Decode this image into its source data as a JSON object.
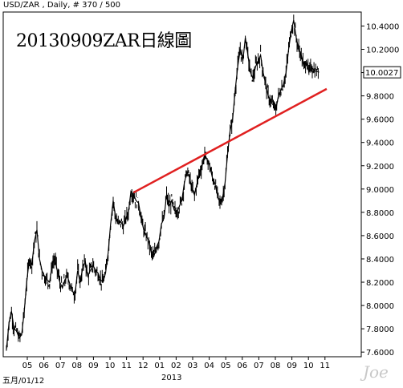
{
  "header": {
    "symbol_info": "USD/ZAR , Daily, # 370 / 500"
  },
  "title": "20130909ZAR日線圖",
  "watermark": "Joe",
  "bottom_labels": {
    "start_date": "五月/01/12",
    "year": "2013"
  },
  "chart_data": {
    "type": "line",
    "style": "candlestick-like daily price bars",
    "title": "20130909ZAR日線圖",
    "instrument": "USD/ZAR",
    "x_tick_labels": [
      "05",
      "06",
      "07",
      "08",
      "09",
      "10",
      "11",
      "12",
      "01",
      "02",
      "03",
      "04",
      "05",
      "06",
      "07",
      "08",
      "09",
      "10",
      "11"
    ],
    "y_ticks": [
      7.6,
      7.8,
      8.0,
      8.2,
      8.4,
      8.6,
      8.8,
      9.0,
      9.2,
      9.4,
      9.6,
      9.8,
      10.0,
      10.2,
      10.4
    ],
    "y_tick_labels": [
      "7.6000",
      "7.8000",
      "8.0000",
      "8.2000",
      "8.4000",
      "8.6000",
      "8.8000",
      "9.0000",
      "9.2000",
      "9.4000",
      "9.6000",
      "9.8000",
      "10.0000",
      "10.2000",
      "10.4000"
    ],
    "ylim": [
      7.56,
      10.52
    ],
    "current_price_label": "10.0027",
    "current_price": 10.0027,
    "series": [
      {
        "x": [
          0,
          3,
          6,
          9,
          12,
          15,
          18,
          21,
          24,
          27,
          30,
          33,
          36,
          39,
          42,
          45,
          48,
          51,
          54,
          57,
          60,
          63,
          66,
          69,
          72,
          75,
          78,
          81,
          84,
          87,
          90,
          93,
          96,
          99,
          102,
          105,
          108,
          111,
          114,
          117,
          120,
          123,
          126,
          129,
          132,
          135,
          138,
          141,
          144,
          147,
          150,
          153,
          156,
          159,
          162,
          165,
          168,
          171,
          174,
          177,
          180,
          183,
          186,
          189,
          192,
          195,
          198,
          201,
          204,
          207,
          210,
          213,
          216,
          219,
          222,
          225,
          228,
          231,
          234,
          237,
          240,
          243,
          246,
          249,
          252,
          255,
          258,
          261,
          264,
          267,
          270,
          273,
          276,
          279,
          282,
          285,
          288,
          291,
          294,
          297,
          300,
          303,
          306,
          309,
          312,
          315,
          318,
          321,
          324,
          327,
          330,
          333,
          336,
          339,
          342,
          345,
          348,
          351,
          354,
          357,
          360,
          363,
          366,
          369
        ],
        "values": [
          7.62,
          7.85,
          7.95,
          7.8,
          7.78,
          7.72,
          7.75,
          7.95,
          8.2,
          8.4,
          8.35,
          8.55,
          8.65,
          8.4,
          8.3,
          8.25,
          8.22,
          8.2,
          8.35,
          8.4,
          8.3,
          8.2,
          8.15,
          8.22,
          8.25,
          8.18,
          8.12,
          8.1,
          8.3,
          8.2,
          8.32,
          8.38,
          8.25,
          8.3,
          8.35,
          8.3,
          8.28,
          8.22,
          8.2,
          8.28,
          8.45,
          8.7,
          8.9,
          8.75,
          8.7,
          8.72,
          8.68,
          8.75,
          8.8,
          8.98,
          8.95,
          8.9,
          8.88,
          8.75,
          8.65,
          8.6,
          8.55,
          8.45,
          8.42,
          8.5,
          8.55,
          8.7,
          8.75,
          8.95,
          8.85,
          8.9,
          8.82,
          8.8,
          8.85,
          8.9,
          9.05,
          9.15,
          9.1,
          9.0,
          8.95,
          9.05,
          9.15,
          9.2,
          9.3,
          9.25,
          9.2,
          9.1,
          9.05,
          8.95,
          8.88,
          8.92,
          9.05,
          9.3,
          9.5,
          9.6,
          9.85,
          10.05,
          10.2,
          10.1,
          10.3,
          10.15,
          10.0,
          9.95,
          10.05,
          10.1,
          10.15,
          10.0,
          9.9,
          9.8,
          9.75,
          9.72,
          9.68,
          9.8,
          9.85,
          9.9,
          10.0,
          10.2,
          10.35,
          10.45,
          10.3,
          10.2,
          10.15,
          10.05,
          10.1,
          10.0,
          10.05,
          10.02,
          10.01,
          10.0027
        ]
      }
    ],
    "trendline": {
      "color": "#e02020",
      "points": [
        {
          "x": 150,
          "y": 8.97
        },
        {
          "x": 378,
          "y": 9.86
        }
      ]
    },
    "colors": {
      "price": "#000000",
      "trendline": "#e02020",
      "frame": "#000000"
    }
  }
}
